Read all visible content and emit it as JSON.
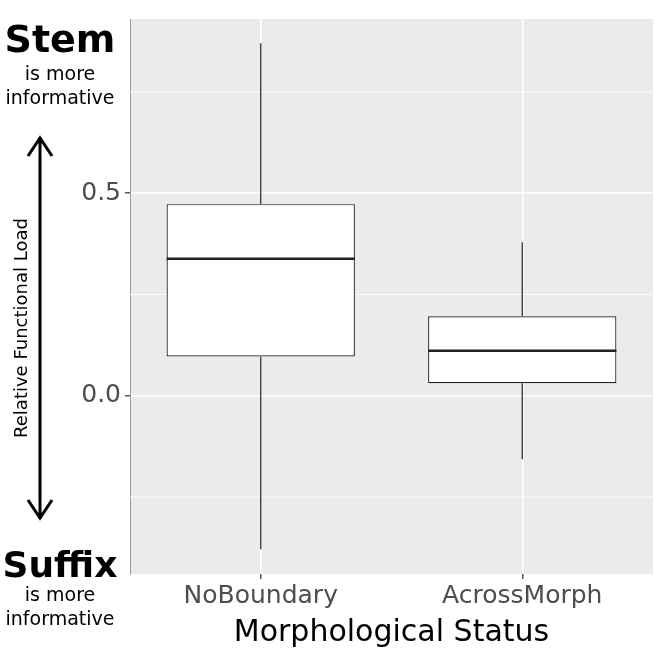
{
  "chart_data": {
    "type": "boxplot",
    "x_label": "Morphological Status",
    "y_label": "Relative Functional Load",
    "categories": [
      "NoBoundary",
      "AcrossMorph"
    ],
    "boxes": [
      {
        "whisker_low": -0.379,
        "q1": 0.097,
        "median": 0.338,
        "q3": 0.473,
        "whisker_high": 0.87
      },
      {
        "whisker_low": -0.157,
        "q1": 0.031,
        "median": 0.111,
        "q3": 0.196,
        "whisker_high": 0.379
      }
    ],
    "color": "#ffffff",
    "ylim": [
      -0.44,
      0.93
    ],
    "yticks": [
      {
        "value": 0,
        "label": "0.0"
      },
      {
        "value": 0.5,
        "label": "0.5"
      }
    ],
    "grid": true,
    "annotations": [
      {
        "title": "Stem",
        "lines": [
          "is more",
          "informative"
        ]
      },
      {
        "title": "Suffix",
        "lines": [
          "is more",
          "informative"
        ]
      }
    ]
  }
}
